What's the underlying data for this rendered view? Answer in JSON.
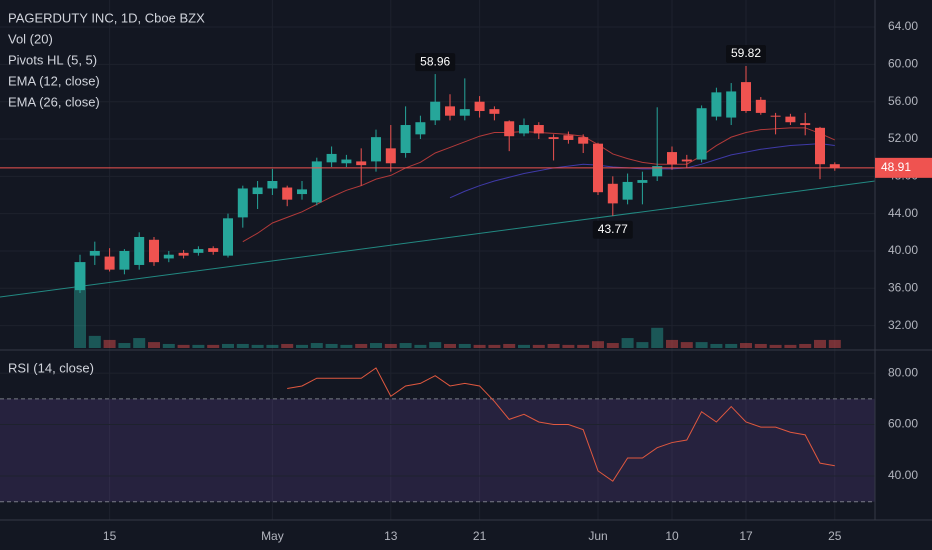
{
  "chart_data": [
    {
      "type": "candlestick",
      "title": "PAGERDUTY INC, 1D, Cboe BZX",
      "categories": [
        null,
        null,
        "15",
        null,
        null,
        null,
        null,
        null,
        null,
        null,
        null,
        null,
        null,
        "May",
        null,
        null,
        null,
        null,
        null,
        null,
        null,
        "13",
        null,
        null,
        null,
        null,
        null,
        "21",
        null,
        null,
        null,
        null,
        null,
        null,
        null,
        "Jun",
        null,
        null,
        null,
        null,
        "10",
        null,
        null,
        null,
        null,
        "17",
        null,
        null,
        null,
        null,
        null,
        "25"
      ],
      "open": [
        35.8,
        39.5,
        39.4,
        38,
        38.5,
        41.2,
        39.2,
        39.8,
        39.8,
        40.3,
        39.5,
        43.6,
        46.1,
        46.7,
        46.8,
        46.1,
        45.2,
        49.5,
        49.4,
        49.6,
        49.6,
        51,
        50.5,
        52.5,
        54,
        55.5,
        54.5,
        56,
        55.2,
        53.9,
        52.6,
        53.5,
        52.2,
        52.4,
        52.2,
        51.5,
        47.2,
        45.5,
        47.3,
        48,
        50.6,
        49.8,
        49.8,
        54.4,
        54.3,
        58.1,
        56.2,
        54.5,
        54.4,
        53.7,
        53.2,
        49.3
      ],
      "high": [
        39.6,
        41,
        40.3,
        40.2,
        42,
        41.5,
        40,
        40.1,
        40.5,
        40.5,
        44,
        47,
        47.5,
        48.8,
        47,
        47.5,
        50,
        51.2,
        50.3,
        51,
        53,
        53.5,
        55.5,
        54.5,
        58.96,
        56.8,
        58.5,
        56.6,
        55.5,
        54,
        54.2,
        53.8,
        52.5,
        52.8,
        52.5,
        51.6,
        48,
        48.3,
        48.5,
        55.4,
        51.2,
        50.3,
        55.6,
        57.5,
        58,
        59.82,
        56.5,
        54.8,
        54.7,
        54.8,
        53.3,
        49.5
      ],
      "low": [
        35.5,
        38.5,
        37.8,
        37.5,
        38,
        38.4,
        38.8,
        39.2,
        39.5,
        39.6,
        39.3,
        42.5,
        44.5,
        46,
        44.8,
        45.5,
        44.9,
        49,
        49,
        47,
        48.5,
        48.5,
        50,
        52,
        53.5,
        54,
        54,
        54.3,
        54,
        50.7,
        52.3,
        52,
        49.7,
        51.5,
        50.5,
        46,
        43.77,
        45,
        45,
        47.5,
        48.7,
        48.9,
        49.5,
        54,
        53.5,
        54.8,
        54.6,
        52.5,
        53.5,
        52.4,
        47.7,
        48.6
      ],
      "close": [
        38.8,
        40,
        38,
        40,
        41.5,
        38.8,
        39.6,
        39.5,
        40.2,
        39.9,
        43.5,
        46.7,
        46.8,
        47.5,
        45.5,
        46.6,
        49.6,
        50.4,
        49.8,
        49.2,
        52.2,
        49.4,
        53.5,
        53.8,
        56,
        54.5,
        55.2,
        55,
        54.7,
        52.3,
        53.5,
        52.6,
        52,
        51.9,
        51.5,
        46.3,
        45.1,
        47.4,
        47.6,
        49.1,
        49.3,
        49.6,
        55.3,
        57,
        57.1,
        55,
        54.8,
        54.4,
        53.8,
        53.5,
        49.3,
        48.91
      ],
      "up_color": "#26a69a",
      "down_color": "#ef5350",
      "volume": {
        "name": "Vol (20)",
        "values": [
          27.7,
          3.9,
          2.6,
          1.6,
          3.2,
          1.9,
          1.3,
          1.0,
          1.0,
          1.0,
          1.3,
          1.3,
          1.0,
          1.0,
          1.3,
          1.0,
          1.6,
          1.3,
          1.0,
          1.3,
          1.6,
          1.3,
          1.6,
          1.0,
          1.9,
          1.3,
          1.3,
          1.0,
          1.0,
          1.3,
          1.0,
          1.0,
          1.3,
          1.0,
          1.0,
          2.2,
          1.6,
          3.2,
          1.9,
          6.5,
          2.6,
          1.9,
          1.9,
          1.3,
          1.3,
          1.6,
          1.3,
          1.0,
          1.0,
          1.3,
          2.6,
          2.6
        ]
      },
      "pivots": {
        "name": "Pivots HL (5, 5)",
        "high": [
          null,
          null,
          null,
          null,
          null,
          null,
          null,
          null,
          null,
          null,
          null,
          null,
          null,
          null,
          null,
          null,
          null,
          null,
          null,
          null,
          null,
          null,
          null,
          null,
          58.96,
          null,
          null,
          null,
          null,
          null,
          null,
          null,
          null,
          null,
          null,
          null,
          null,
          null,
          null,
          null,
          null,
          null,
          null,
          null,
          null,
          59.82,
          null,
          null,
          null,
          null,
          null,
          null
        ],
        "low": [
          null,
          null,
          null,
          null,
          null,
          null,
          null,
          null,
          null,
          null,
          null,
          null,
          null,
          null,
          null,
          null,
          null,
          null,
          null,
          null,
          null,
          null,
          null,
          null,
          null,
          null,
          null,
          null,
          null,
          null,
          null,
          null,
          null,
          null,
          null,
          null,
          43.77,
          null,
          null,
          null,
          null,
          null,
          null,
          null,
          null,
          null,
          null,
          null,
          null,
          null,
          null,
          null
        ]
      },
      "series": [
        {
          "name": "EMA (12, close)",
          "color": "#b23a3a",
          "values": [
            null,
            null,
            null,
            null,
            null,
            null,
            null,
            null,
            null,
            null,
            null,
            41.0,
            41.9,
            43,
            43.6,
            44.2,
            45.0,
            45.8,
            46.5,
            47,
            47.7,
            48.1,
            48.9,
            49.5,
            50.5,
            51.1,
            51.7,
            52.3,
            52.7,
            52.7,
            52.8,
            52.7,
            52.6,
            52.5,
            52.3,
            51.4,
            50.4,
            49.9,
            49.5,
            49.3,
            49.3,
            49.3,
            50.2,
            51.3,
            52.2,
            52.7,
            53.0,
            53.1,
            53.2,
            53.2,
            52.6,
            51.9
          ]
        },
        {
          "name": "EMA (26, close)",
          "color": "#3f3aa8",
          "values": [
            null,
            null,
            null,
            null,
            null,
            null,
            null,
            null,
            null,
            null,
            null,
            null,
            null,
            null,
            null,
            null,
            null,
            null,
            null,
            null,
            null,
            null,
            null,
            null,
            null,
            45.7,
            46.4,
            47.0,
            47.5,
            47.9,
            48.3,
            48.6,
            48.9,
            49.1,
            49.3,
            49.2,
            49.0,
            48.9,
            48.8,
            48.8,
            48.8,
            48.9,
            49.3,
            49.8,
            50.3,
            50.6,
            50.9,
            51.1,
            51.3,
            51.4,
            51.5,
            51.3
          ]
        }
      ],
      "ylim": [
        29.6,
        66.9
      ],
      "yticks": [
        {
          "value": 32,
          "label": "32.00"
        },
        {
          "value": 36,
          "label": "36.00"
        },
        {
          "value": 40,
          "label": "40.00"
        },
        {
          "value": 44,
          "label": "44.00"
        },
        {
          "value": 48,
          "label": "48.00"
        },
        {
          "value": 52,
          "label": "52.00"
        },
        {
          "value": 56,
          "label": "56.00"
        },
        {
          "value": 60,
          "label": "60.00"
        },
        {
          "value": 64,
          "label": "64.00"
        }
      ],
      "grid": true
    },
    {
      "type": "line",
      "title": "RSI (14, close)",
      "series": [
        {
          "name": "RSI (14, close)",
          "color": "#e0583f",
          "values": [
            null,
            null,
            null,
            null,
            null,
            null,
            null,
            null,
            null,
            null,
            null,
            null,
            null,
            null,
            74,
            75,
            78,
            78,
            78,
            78,
            82,
            71,
            75,
            76,
            79,
            75,
            76,
            75,
            69,
            62,
            64,
            61,
            60,
            60,
            58,
            42,
            38,
            47,
            47,
            51,
            53,
            54,
            65,
            61,
            67,
            61,
            59,
            59,
            57,
            56,
            45,
            44
          ]
        }
      ],
      "levels": [
        30,
        70
      ],
      "ylim": [
        22.9,
        88.2
      ],
      "yticks": [
        {
          "value": 40,
          "label": "40.00"
        },
        {
          "value": 60,
          "label": "60.00"
        },
        {
          "value": 80,
          "label": "80.00"
        }
      ],
      "grid": true
    }
  ]
}
